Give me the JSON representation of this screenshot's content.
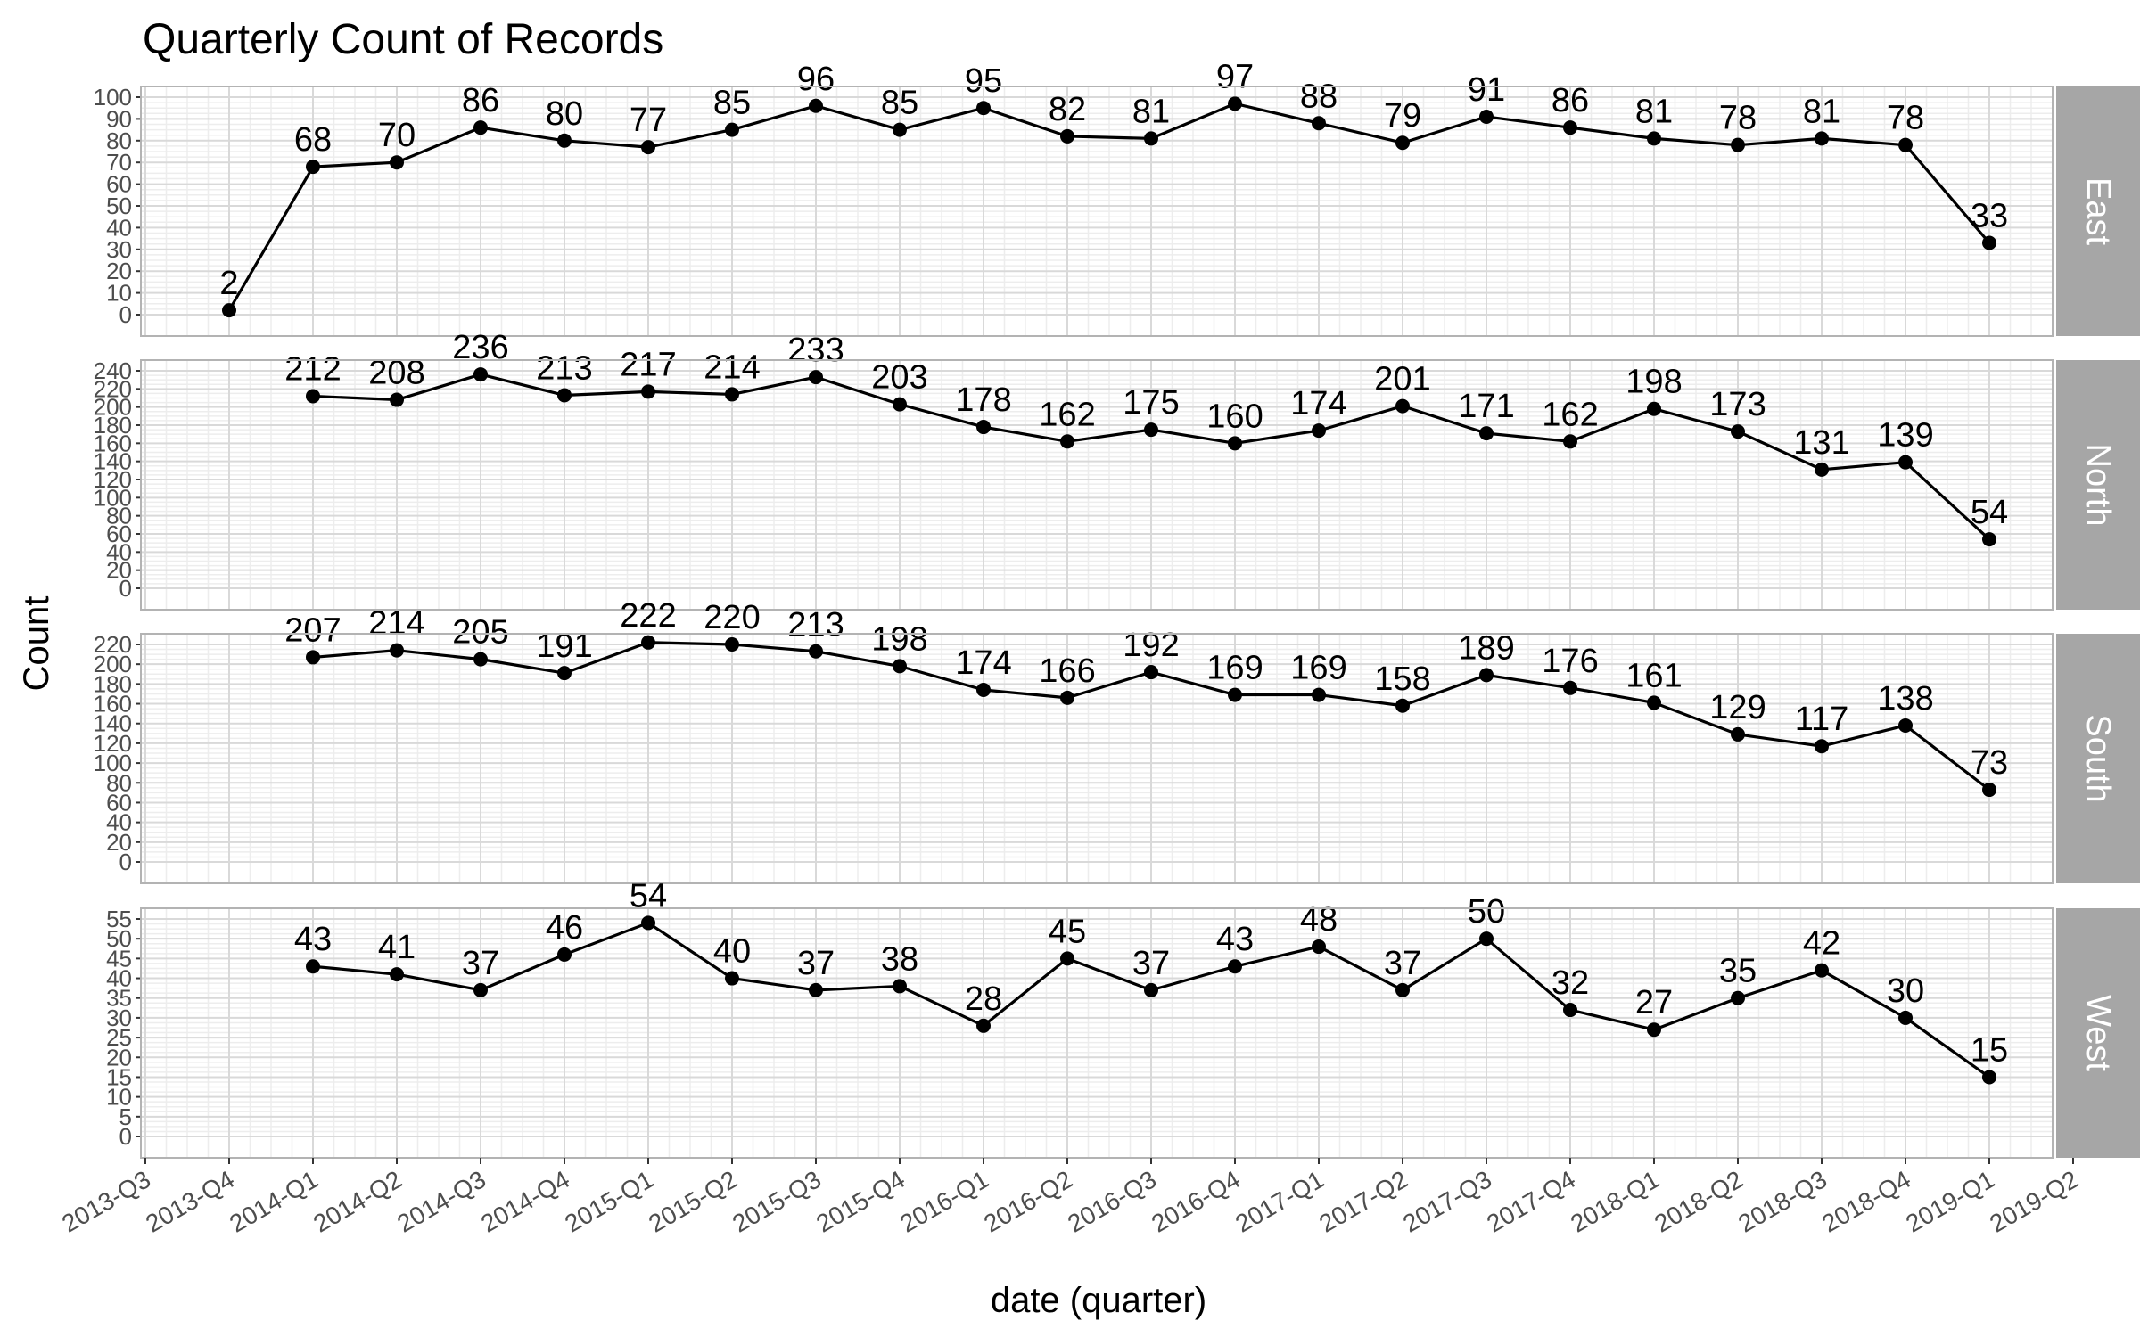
{
  "chart_data": {
    "type": "line",
    "title": "Quarterly Count of Records",
    "xlabel": "date (quarter)",
    "ylabel": "Count",
    "grid": true,
    "x_ticks": [
      "2013-Q3",
      "2013-Q4",
      "2014-Q1",
      "2014-Q2",
      "2014-Q3",
      "2014-Q4",
      "2015-Q1",
      "2015-Q2",
      "2015-Q3",
      "2015-Q4",
      "2016-Q1",
      "2016-Q2",
      "2016-Q3",
      "2016-Q4",
      "2017-Q1",
      "2017-Q2",
      "2017-Q3",
      "2017-Q4",
      "2018-Q1",
      "2018-Q2",
      "2018-Q3",
      "2018-Q4",
      "2019-Q1",
      "2019-Q2"
    ],
    "panels": [
      {
        "name": "East",
        "ylim": [
          0,
          100
        ],
        "y_ticks": [
          0,
          10,
          20,
          30,
          40,
          50,
          60,
          70,
          80,
          90,
          100
        ],
        "x": [
          "2013-Q4",
          "2014-Q1",
          "2014-Q2",
          "2014-Q3",
          "2014-Q4",
          "2015-Q1",
          "2015-Q2",
          "2015-Q3",
          "2015-Q4",
          "2016-Q1",
          "2016-Q2",
          "2016-Q3",
          "2016-Q4",
          "2017-Q1",
          "2017-Q2",
          "2017-Q3",
          "2017-Q4",
          "2018-Q1",
          "2018-Q2",
          "2018-Q3",
          "2018-Q4",
          "2019-Q1"
        ],
        "values": [
          2,
          68,
          70,
          86,
          80,
          77,
          85,
          96,
          85,
          95,
          82,
          81,
          97,
          88,
          79,
          91,
          86,
          81,
          78,
          81,
          78,
          33
        ]
      },
      {
        "name": "North",
        "ylim": [
          0,
          240
        ],
        "y_ticks": [
          0,
          20,
          40,
          60,
          80,
          100,
          120,
          140,
          160,
          180,
          200,
          220,
          240
        ],
        "x": [
          "2014-Q1",
          "2014-Q2",
          "2014-Q3",
          "2014-Q4",
          "2015-Q1",
          "2015-Q2",
          "2015-Q3",
          "2015-Q4",
          "2016-Q1",
          "2016-Q2",
          "2016-Q3",
          "2016-Q4",
          "2017-Q1",
          "2017-Q2",
          "2017-Q3",
          "2017-Q4",
          "2018-Q1",
          "2018-Q2",
          "2018-Q3",
          "2018-Q4",
          "2019-Q1"
        ],
        "values": [
          212,
          208,
          236,
          213,
          217,
          214,
          233,
          203,
          178,
          162,
          175,
          160,
          174,
          201,
          171,
          162,
          198,
          173,
          131,
          139,
          54
        ]
      },
      {
        "name": "South",
        "ylim": [
          0,
          220
        ],
        "y_ticks": [
          0,
          20,
          40,
          60,
          80,
          100,
          120,
          140,
          160,
          180,
          200,
          220
        ],
        "x": [
          "2014-Q1",
          "2014-Q2",
          "2014-Q3",
          "2014-Q4",
          "2015-Q1",
          "2015-Q2",
          "2015-Q3",
          "2015-Q4",
          "2016-Q1",
          "2016-Q2",
          "2016-Q3",
          "2016-Q4",
          "2017-Q1",
          "2017-Q2",
          "2017-Q3",
          "2017-Q4",
          "2018-Q1",
          "2018-Q2",
          "2018-Q3",
          "2018-Q4",
          "2019-Q1"
        ],
        "values": [
          207,
          214,
          205,
          191,
          222,
          220,
          213,
          198,
          174,
          166,
          192,
          169,
          169,
          158,
          189,
          176,
          161,
          129,
          117,
          138,
          73
        ]
      },
      {
        "name": "West",
        "ylim": [
          0,
          55
        ],
        "y_ticks": [
          0,
          5,
          10,
          15,
          20,
          25,
          30,
          35,
          40,
          45,
          50,
          55
        ],
        "x": [
          "2014-Q1",
          "2014-Q2",
          "2014-Q3",
          "2014-Q4",
          "2015-Q1",
          "2015-Q2",
          "2015-Q3",
          "2015-Q4",
          "2016-Q1",
          "2016-Q2",
          "2016-Q3",
          "2016-Q4",
          "2017-Q1",
          "2017-Q2",
          "2017-Q3",
          "2017-Q4",
          "2018-Q1",
          "2018-Q2",
          "2018-Q3",
          "2018-Q4",
          "2019-Q1"
        ],
        "values": [
          43,
          41,
          37,
          46,
          54,
          40,
          37,
          38,
          28,
          45,
          37,
          43,
          48,
          37,
          50,
          32,
          27,
          35,
          42,
          30,
          15
        ]
      }
    ]
  },
  "colors": {
    "line": "#000000",
    "point": "#000000",
    "panel_border": "#b3b3b3",
    "grid_major": "#d9d9d9",
    "grid_minor": "#ededed",
    "strip": "#a6a6a6",
    "strip_text": "#ffffff",
    "tick_text": "#4d4d4d"
  }
}
